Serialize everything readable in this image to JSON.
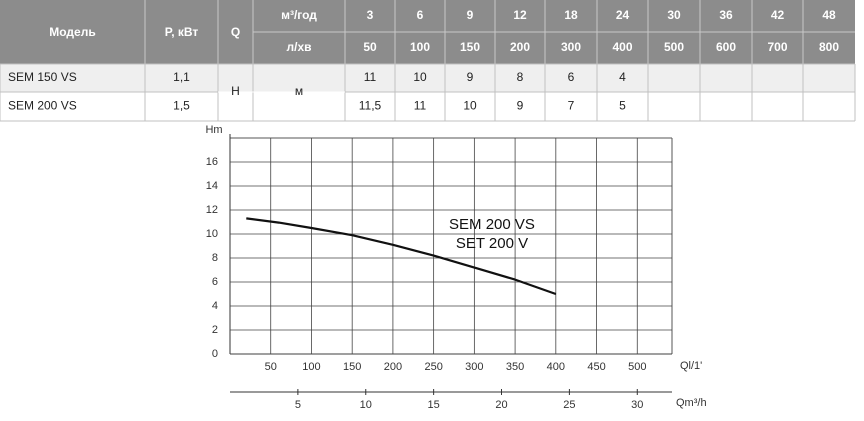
{
  "table": {
    "header": [
      "Модель",
      "P, кВт",
      "Q"
    ],
    "units": [
      "м³/год",
      "л/хв"
    ],
    "flow_m3h": [
      3,
      6,
      9,
      12,
      18,
      24,
      30,
      36,
      42,
      48
    ],
    "flow_lmin": [
      50,
      100,
      150,
      200,
      300,
      400,
      500,
      600,
      700,
      800
    ],
    "head_label": "H",
    "head_unit": "м",
    "rows": [
      {
        "model": "SEM 150 VS",
        "power": "1,1",
        "head": [
          "11",
          "10",
          "9",
          "8",
          "6",
          "4"
        ]
      },
      {
        "model": "SEM 200 VS",
        "power": "1,5",
        "head": [
          "11,5",
          "11",
          "10",
          "9",
          "7",
          "5"
        ]
      }
    ]
  },
  "chart_data": {
    "type": "line",
    "y_label": "Hm",
    "x_label": "Ql/1'",
    "x2_label": "Qm³/h",
    "x": [
      20,
      60,
      100,
      150,
      200,
      250,
      300,
      350,
      400
    ],
    "series": [
      {
        "name": "SEM 200 VS",
        "color": "#111111",
        "values": [
          11.3,
          10.95,
          10.5,
          9.9,
          9.1,
          8.2,
          7.2,
          6.2,
          5.0
        ]
      }
    ],
    "annotation": "SET 200 V",
    "xlim": [
      0,
      550
    ],
    "xticks": [
      50,
      100,
      150,
      200,
      250,
      300,
      350,
      400,
      450,
      500
    ],
    "x2lim": [
      0,
      33
    ],
    "x2ticks": [
      5,
      10,
      15,
      20,
      25,
      30
    ],
    "ylim": [
      0,
      18
    ],
    "yticks": [
      0,
      2,
      4,
      6,
      8,
      10,
      12,
      14,
      16
    ],
    "grid": true
  }
}
